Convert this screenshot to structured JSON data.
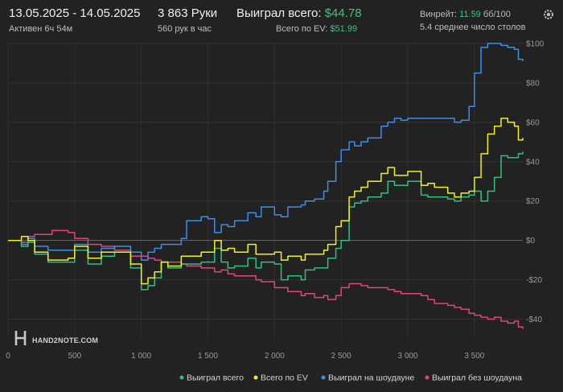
{
  "header": {
    "date_range": "13.05.2025 - 14.05.2025",
    "active_time": "Активен 6ч 54м",
    "hands": "3 863 Руки",
    "hands_per_hour": "560 рук в час",
    "won_total_label": "Выиграл всего:",
    "won_total_value": "$44.78",
    "ev_total_label": "Всего по EV:",
    "ev_total_value": "$51.99",
    "winrate_label": "Винрейт:",
    "winrate_value": "11.59",
    "winrate_unit": "бб/100",
    "avg_tables": "5.4 среднее число столов"
  },
  "logo": {
    "text": "HAND2NOTE.COM"
  },
  "colors": {
    "green": "#2ec27e",
    "yellow": "#f2f21b",
    "blue": "#3b8fe8",
    "pink": "#e0457b"
  },
  "chart_data": {
    "type": "line",
    "xlim": [
      0,
      3863
    ],
    "ylim": [
      -50,
      100
    ],
    "x_ticks": [
      0,
      500,
      1000,
      1500,
      2000,
      2500,
      3000,
      3500
    ],
    "x_tick_labels": [
      "0",
      "500",
      "1 000",
      "1 500",
      "2 000",
      "2 500",
      "3 000",
      "3 500"
    ],
    "y_ticks": [
      100,
      80,
      60,
      40,
      20,
      0,
      -20,
      -40
    ],
    "y_tick_labels": [
      "$100",
      "$80",
      "$60",
      "$40",
      "$20",
      "$0",
      "-$20",
      "-$40"
    ],
    "legend_position": "bottom-right",
    "series": [
      {
        "name": "Выиграл всего",
        "color": "#2ec27e",
        "x": [
          0,
          100,
          150,
          200,
          300,
          330,
          450,
          500,
          600,
          640,
          700,
          800,
          860,
          920,
          980,
          1000,
          1050,
          1100,
          1150,
          1200,
          1300,
          1340,
          1450,
          1500,
          1550,
          1600,
          1650,
          1700,
          1800,
          1860,
          1900,
          2000,
          2050,
          2100,
          2200,
          2230,
          2300,
          2370,
          2400,
          2460,
          2500,
          2560,
          2600,
          2650,
          2700,
          2800,
          2850,
          2900,
          2950,
          3000,
          3100,
          3150,
          3200,
          3300,
          3350,
          3400,
          3460,
          3500,
          3550,
          3600,
          3650,
          3700,
          3750,
          3800,
          3830,
          3863
        ],
        "y": [
          0,
          -3,
          -1,
          -7,
          -11,
          -11,
          -11,
          -5,
          -12,
          -12,
          -8,
          -6,
          -6,
          -14,
          -14,
          -25,
          -23,
          -19,
          -11,
          -14,
          -12,
          -12,
          -11,
          -11,
          -4,
          -11,
          -14,
          -13,
          -9,
          -14,
          -11,
          -12,
          -20,
          -18,
          -20,
          -15,
          -14,
          -14,
          -9,
          -4,
          0,
          17,
          19,
          20,
          22,
          24,
          30,
          28,
          28,
          30,
          23,
          22,
          22,
          21,
          20,
          22,
          23,
          25,
          20,
          25,
          32,
          43,
          42,
          42,
          44,
          45
        ]
      },
      {
        "name": "Всего по EV",
        "color": "#f2f21b",
        "x": [
          0,
          100,
          150,
          200,
          300,
          330,
          450,
          500,
          600,
          640,
          700,
          800,
          860,
          920,
          980,
          1000,
          1050,
          1100,
          1150,
          1200,
          1300,
          1340,
          1450,
          1500,
          1550,
          1600,
          1650,
          1700,
          1800,
          1860,
          1900,
          2000,
          2050,
          2100,
          2200,
          2230,
          2300,
          2370,
          2400,
          2460,
          2500,
          2560,
          2600,
          2650,
          2700,
          2800,
          2850,
          2900,
          2950,
          3000,
          3100,
          3150,
          3200,
          3300,
          3350,
          3400,
          3460,
          3500,
          3550,
          3600,
          3650,
          3700,
          3750,
          3800,
          3830,
          3863
        ],
        "y": [
          0,
          2,
          0,
          -6,
          -10,
          -10,
          -9,
          -3,
          -9,
          -9,
          -6,
          -6,
          -6,
          -12,
          -12,
          -22,
          -19,
          -16,
          -11,
          -13,
          -8,
          -8,
          -6,
          -6,
          0,
          -5,
          -4,
          -6,
          -2,
          -7,
          -7,
          -6,
          -10,
          -8,
          -10,
          -7,
          -7,
          -5,
          -2,
          7,
          10,
          22,
          25,
          27,
          30,
          34,
          37,
          33,
          33,
          35,
          28,
          29,
          27,
          24,
          22,
          24,
          25,
          32,
          44,
          54,
          58,
          62,
          60,
          58,
          51,
          52
        ]
      },
      {
        "name": "Выиграл на шоудауне",
        "color": "#3b8fe8",
        "x": [
          0,
          100,
          150,
          200,
          300,
          330,
          450,
          500,
          600,
          640,
          700,
          800,
          860,
          920,
          980,
          1000,
          1050,
          1100,
          1150,
          1200,
          1300,
          1340,
          1450,
          1500,
          1550,
          1600,
          1650,
          1700,
          1800,
          1860,
          1900,
          2000,
          2050,
          2100,
          2200,
          2230,
          2300,
          2370,
          2400,
          2460,
          2500,
          2560,
          2600,
          2650,
          2700,
          2800,
          2850,
          2900,
          2950,
          3000,
          3100,
          3150,
          3200,
          3300,
          3350,
          3400,
          3460,
          3500,
          3550,
          3600,
          3650,
          3700,
          3750,
          3800,
          3830,
          3863
        ],
        "y": [
          0,
          -2,
          1,
          -3,
          -5,
          -5,
          -5,
          -2,
          -6,
          -6,
          -4,
          -3,
          -3,
          -6,
          -6,
          -10,
          -6,
          -4,
          -2,
          -2,
          1,
          10,
          12,
          11,
          4,
          8,
          7,
          10,
          14,
          12,
          17,
          13,
          12,
          17,
          18,
          20,
          21,
          25,
          30,
          40,
          46,
          50,
          48,
          50,
          52,
          58,
          60,
          62,
          61,
          62,
          62,
          62,
          62,
          62,
          60,
          61,
          68,
          85,
          98,
          100,
          100,
          99,
          98,
          97,
          92,
          91
        ]
      },
      {
        "name": "Выиграл без шоудауна",
        "color": "#e0457b",
        "x": [
          0,
          100,
          150,
          200,
          300,
          330,
          450,
          500,
          600,
          640,
          700,
          800,
          860,
          920,
          980,
          1000,
          1050,
          1100,
          1150,
          1200,
          1300,
          1340,
          1450,
          1500,
          1550,
          1600,
          1650,
          1700,
          1800,
          1860,
          1900,
          2000,
          2050,
          2100,
          2200,
          2230,
          2300,
          2370,
          2400,
          2460,
          2500,
          2560,
          2600,
          2650,
          2700,
          2800,
          2850,
          2900,
          2950,
          3000,
          3100,
          3150,
          3200,
          3300,
          3350,
          3400,
          3460,
          3500,
          3550,
          3600,
          3650,
          3700,
          3750,
          3800,
          3830,
          3863
        ],
        "y": [
          0,
          -1,
          2,
          3,
          3,
          5,
          4,
          1,
          -2,
          -2,
          -3,
          -5,
          -5,
          -8,
          -8,
          -8,
          -9,
          -10,
          -11,
          -11,
          -12,
          -13,
          -14,
          -14,
          -16,
          -15,
          -17,
          -18,
          -18,
          -20,
          -21,
          -24,
          -24,
          -26,
          -28,
          -27,
          -29,
          -28,
          -30,
          -28,
          -24,
          -22,
          -22,
          -23,
          -24,
          -24,
          -25,
          -26,
          -27,
          -27,
          -28,
          -30,
          -32,
          -33,
          -34,
          -35,
          -37,
          -38,
          -39,
          -40,
          -39,
          -41,
          -42,
          -41,
          -44,
          -45
        ]
      }
    ]
  }
}
